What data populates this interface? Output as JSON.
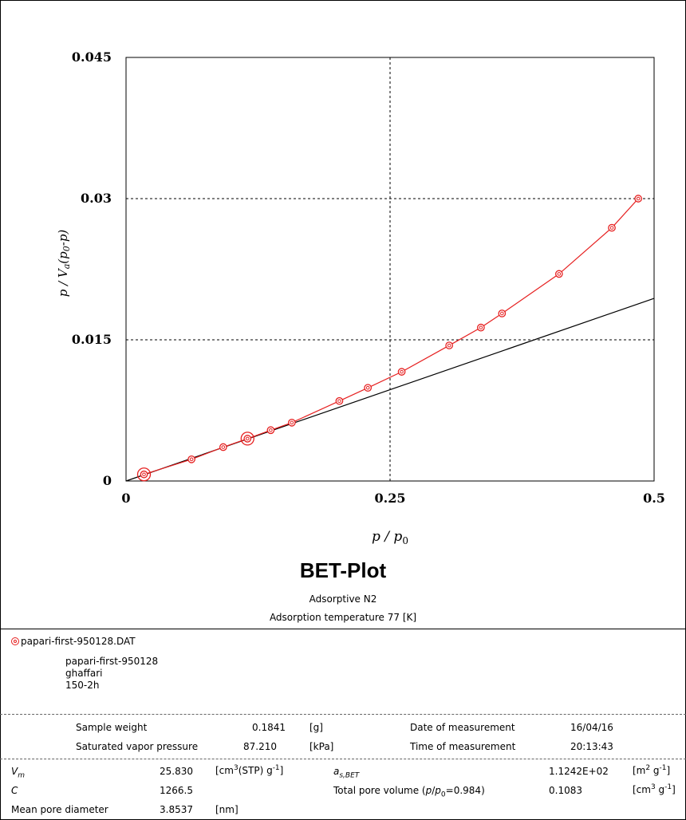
{
  "chart_data": {
    "type": "line",
    "title": "BET-Plot",
    "xlabel": "p / p0",
    "ylabel": "p / Va(p0-p)",
    "xlim": [
      0,
      0.5
    ],
    "ylim": [
      0,
      0.045
    ],
    "x_ticks": [
      "0",
      "0.25",
      "0.5"
    ],
    "y_ticks": [
      "0",
      "0.015",
      "0.03",
      "0.045"
    ],
    "grid": true,
    "series": [
      {
        "name": "papari-first-950128.DAT",
        "color": "#e62020",
        "x": [
          0.017,
          0.062,
          0.092,
          0.115,
          0.137,
          0.157,
          0.202,
          0.229,
          0.261,
          0.306,
          0.336,
          0.356,
          0.41,
          0.46,
          0.485
        ],
        "y": [
          0.0007,
          0.0023,
          0.0036,
          0.0045,
          0.0054,
          0.0062,
          0.0085,
          0.0099,
          0.0116,
          0.0144,
          0.0163,
          0.0178,
          0.022,
          0.0269,
          0.03
        ]
      },
      {
        "name": "",
        "color": "#000000",
        "x": [
          0,
          0.5
        ],
        "y": [
          0,
          0.0194
        ]
      }
    ],
    "highlighted_points": [
      0,
      3
    ]
  },
  "plot": {
    "subtitle_adsorptive": "Adsorptive N2",
    "subtitle_temperature": "Adsorption temperature 77 [K]"
  },
  "sample": {
    "file": "papari-first-950128.DAT",
    "name": "papari-first-950128",
    "operator": "ghaffari",
    "comment": "150-2h"
  },
  "measurement": {
    "sample_weight_label": "Sample weight",
    "sample_weight_value": "0.1841",
    "sample_weight_unit": "[g]",
    "date_label": "Date of measurement",
    "date_value": "16/04/16",
    "svp_label": "Saturated vapor pressure",
    "svp_value": "87.210",
    "svp_unit": "[kPa]",
    "time_label": "Time of measurement",
    "time_value": "20:13:43"
  },
  "results": {
    "vm_label": "Vm",
    "vm_value": "25.830",
    "vm_unit": "[cm3(STP) g-1]",
    "as_label": "as,BET",
    "as_value": "1.1242E+02",
    "as_unit": "[m2 g-1]",
    "c_label": "C",
    "c_value": "1266.5",
    "tpv_label": "Total pore volume (p/p0=0.984)",
    "tpv_value": "0.1083",
    "tpv_unit": "[cm3 g-1]",
    "mpd_label": "Mean pore diameter",
    "mpd_value": "3.8537",
    "mpd_unit": "[nm]"
  }
}
